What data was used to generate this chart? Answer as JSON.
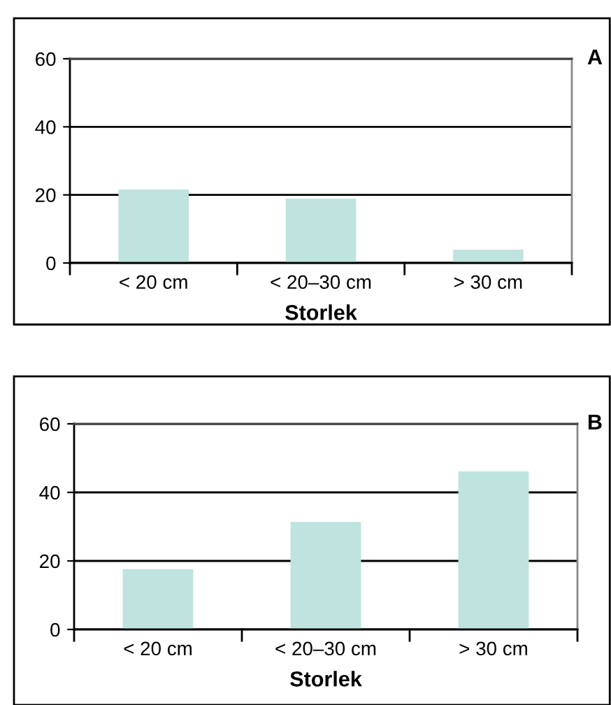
{
  "chart_data": [
    {
      "type": "bar",
      "annotations": [
        "A"
      ],
      "xlabel": "Storlek",
      "categories": [
        "< 20 cm",
        "< 20–30 cm",
        "> 30 cm"
      ],
      "values": [
        21.6,
        18.9,
        3.9
      ],
      "color": "#bfe3de",
      "ylim": [
        0,
        60
      ],
      "yticks": [
        0,
        20,
        40,
        60
      ],
      "grid": "y"
    },
    {
      "type": "bar",
      "annotations": [
        "B"
      ],
      "xlabel": "Storlek",
      "categories": [
        "< 20 cm",
        "< 20–30 cm",
        "> 30 cm"
      ],
      "values": [
        17.6,
        31.4,
        46.1
      ],
      "color": "#bfe3de",
      "ylim": [
        0,
        60
      ],
      "yticks": [
        0,
        20,
        40,
        60
      ],
      "grid": "y"
    }
  ]
}
